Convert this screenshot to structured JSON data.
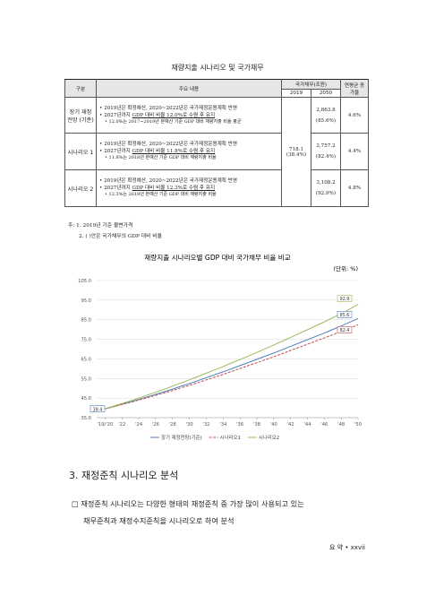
{
  "table": {
    "title": "재량지출 시나리오 및 국가채무",
    "header": {
      "category": "구분",
      "content": "주요 내용",
      "debt": "국가채무(조원)",
      "y2019": "2019",
      "y2050": "2050",
      "rate": "연평균 증가율"
    },
    "base_2019": {
      "value": "718.1",
      "ratio": "(38.4%)"
    },
    "rows": [
      {
        "label": "장기 재정전망 (기준)",
        "bullet1": "2019년은 확정예산, 2020~2022년은 국가재정운용계획 반영",
        "bullet2_prefix": "2027년까지 ",
        "bullet2_underlined": "GDP 대비 비율 12.0%로 수렴 후 유지",
        "sub": "12.0%는 2017~2019년 본예산 기준 GDP 대비 재량지출 비율 평균",
        "value_2050": "2,863.8",
        "ratio_2050": "(85.6%)",
        "rate": "4.6%"
      },
      {
        "label": "시나리오 1",
        "bullet1": "2019년은 확정예산, 2020~2022년은 국가재정운용계획 반영",
        "bullet2_prefix": "2027년까지 ",
        "bullet2_underlined": "GDP 대비 비율 11.8%로 수렴 후 유지",
        "sub": "11.8%는 2018년 본예산 기준 GDP 대비 재량지출 비율",
        "value_2050": "2,757.2",
        "ratio_2050": "(82.4%)",
        "rate": "4.4%"
      },
      {
        "label": "시나리오 2",
        "bullet1": "2019년은 확정예산, 2020~2022년은 국가재정운용계획 반영",
        "bullet2_prefix": "2027년까지 ",
        "bullet2_underlined": "GDP 대비 비율 12.3%로 수렴 후 유지",
        "sub": "12.3%는 2019년 본예산 기준 GDP 대비 재량지출 비율",
        "value_2050": "3,108.2",
        "ratio_2050": "(92.9%)",
        "rate": "4.8%"
      }
    ],
    "notes": [
      "주: 1. 2019년 기준 불변가격",
      "2. ( )안은 국가채무의 GDP 대비 비율"
    ]
  },
  "chart_data": {
    "type": "line",
    "title": "재량지출 시나리오별 GDP 대비 국가채무 비율 비교",
    "unit": "(단위: %)",
    "x": [
      2019,
      2020,
      2021,
      2022,
      2023,
      2024,
      2025,
      2026,
      2027,
      2028,
      2029,
      2030,
      2031,
      2032,
      2033,
      2034,
      2035,
      2036,
      2037,
      2038,
      2039,
      2040,
      2041,
      2042,
      2043,
      2044,
      2045,
      2046,
      2047,
      2048,
      2049,
      2050
    ],
    "xlim": [
      2019,
      2050
    ],
    "xticks": [
      {
        "value": 2020,
        "label": "'19/'20"
      },
      {
        "value": 2022,
        "label": "'22"
      },
      {
        "value": 2024,
        "label": "'24"
      },
      {
        "value": 2026,
        "label": "'26"
      },
      {
        "value": 2028,
        "label": "'28"
      },
      {
        "value": 2030,
        "label": "'30"
      },
      {
        "value": 2032,
        "label": "'32"
      },
      {
        "value": 2034,
        "label": "'34"
      },
      {
        "value": 2036,
        "label": "'36"
      },
      {
        "value": 2038,
        "label": "'38"
      },
      {
        "value": 2040,
        "label": "'40"
      },
      {
        "value": 2042,
        "label": "'42"
      },
      {
        "value": 2044,
        "label": "'44"
      },
      {
        "value": 2046,
        "label": "'46"
      },
      {
        "value": 2048,
        "label": "'48"
      },
      {
        "value": 2050,
        "label": "'50"
      }
    ],
    "ylim": [
      35,
      105
    ],
    "yticks": [
      {
        "value": 35,
        "label": "35.0"
      },
      {
        "value": 45,
        "label": "45.0"
      },
      {
        "value": 55,
        "label": "55.0"
      },
      {
        "value": 65,
        "label": "65.0"
      },
      {
        "value": 75,
        "label": "75.0"
      },
      {
        "value": 85,
        "label": "85.0"
      },
      {
        "value": 95,
        "label": "95.0"
      },
      {
        "value": 105,
        "label": "105.0"
      }
    ],
    "grid": true,
    "series": [
      {
        "name": "장기 재정전망(기준)",
        "color": "#4f81bd",
        "dash": false,
        "values": [
          38.4,
          39.5,
          40.7,
          41.9,
          43.1,
          44.3,
          45.6,
          46.9,
          48.2,
          49.6,
          51.0,
          52.4,
          53.9,
          55.4,
          56.9,
          58.4,
          60.0,
          61.6,
          63.2,
          64.8,
          66.4,
          68.0,
          69.7,
          71.4,
          73.1,
          74.8,
          76.5,
          78.2,
          80.0,
          81.8,
          83.7,
          85.6
        ]
      },
      {
        "name": "시나리오1",
        "color": "#c0504d",
        "dash": true,
        "values": [
          38.4,
          39.5,
          40.6,
          41.7,
          42.8,
          44.0,
          45.2,
          46.4,
          47.6,
          48.9,
          50.2,
          51.5,
          52.9,
          54.3,
          55.7,
          57.1,
          58.6,
          60.1,
          61.6,
          63.1,
          64.6,
          66.1,
          67.7,
          69.3,
          70.9,
          72.5,
          74.1,
          75.7,
          77.3,
          79.0,
          80.7,
          82.4
        ]
      },
      {
        "name": "시나리오2",
        "color": "#9bbb59",
        "dash": false,
        "values": [
          38.4,
          39.6,
          40.9,
          42.2,
          43.6,
          45.0,
          46.5,
          48.0,
          49.5,
          51.1,
          52.7,
          54.3,
          56.0,
          57.7,
          59.4,
          61.1,
          62.9,
          64.7,
          66.5,
          68.3,
          70.2,
          72.1,
          74.0,
          75.9,
          77.9,
          79.9,
          81.9,
          83.9,
          86.0,
          88.1,
          90.4,
          92.9
        ]
      }
    ]
  },
  "section": {
    "title": "3. 재정준칙 시나리오 분석",
    "lines": [
      "재정준칙 시나리오는 다양한 형태의 재정준칙 중 가장 많이 사용되고 있는",
      "채무준칙과 재정수지준칙을 시나리오로 하여 분석"
    ]
  },
  "footer": "요 약 • xxvii"
}
